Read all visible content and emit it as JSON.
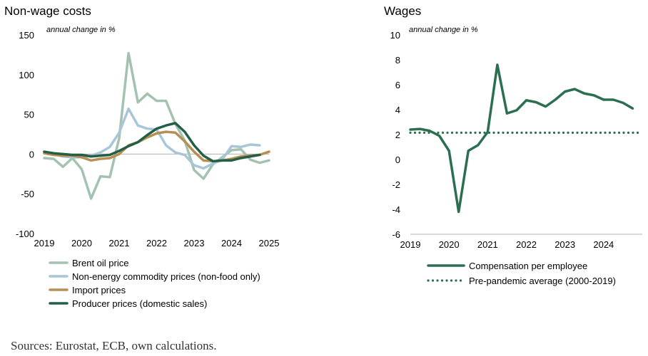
{
  "source": "Sources: Eurostat, ECB, own calculations.",
  "chart_data": [
    {
      "type": "line",
      "title": "Non-wage costs",
      "unit_label": "annual change in %",
      "ylim": [
        -100,
        150
      ],
      "yticks": [
        -100,
        -50,
        0,
        50,
        100,
        150
      ],
      "xlim": [
        2019,
        2025
      ],
      "xticks": [
        2019,
        2020,
        2021,
        2022,
        2023,
        2024,
        2025
      ],
      "grid": false,
      "legend_position": "bottom",
      "x": [
        2019.0,
        2019.25,
        2019.5,
        2019.75,
        2020.0,
        2020.25,
        2020.5,
        2020.75,
        2021.0,
        2021.25,
        2021.5,
        2021.75,
        2022.0,
        2022.25,
        2022.5,
        2022.75,
        2023.0,
        2023.25,
        2023.5,
        2023.75,
        2024.0,
        2024.25,
        2024.5,
        2024.75,
        2025.0
      ],
      "series": [
        {
          "name": "Brent oil price",
          "color": "#a3c2b0",
          "values": [
            -5,
            -6,
            -16,
            -5,
            -19,
            -56,
            -28,
            -29,
            20,
            127,
            65,
            76,
            67,
            67,
            38,
            17,
            -20,
            -31,
            -13,
            -4,
            5,
            6,
            -7,
            -11,
            -8
          ]
        },
        {
          "name": "Non-energy commodity prices (non-food only)",
          "color": "#a9c6d9",
          "values": [
            2,
            0,
            -3,
            -4,
            -4,
            -2,
            2,
            9,
            27,
            57,
            36,
            32,
            31,
            11,
            2,
            -1,
            -14,
            -18,
            -12,
            -7,
            10,
            9,
            12,
            11,
            null
          ]
        },
        {
          "name": "Import prices",
          "color": "#b58f53",
          "values": [
            1,
            -1,
            -2,
            -2,
            -4,
            -8,
            -6,
            -5,
            0,
            11,
            15,
            21,
            26,
            28,
            27,
            16,
            3,
            -8,
            -9,
            -8,
            -6,
            -3,
            -2,
            -1,
            3
          ]
        },
        {
          "name": "Producer prices (domestic sales)",
          "color": "#235e45",
          "values": [
            3,
            1,
            0,
            -1,
            -1,
            -3,
            -2,
            -1,
            4,
            10,
            15,
            24,
            32,
            36,
            39,
            28,
            11,
            -2,
            -9,
            -8,
            -8,
            -5,
            -3,
            -1,
            null
          ]
        }
      ]
    },
    {
      "type": "line",
      "title": "Wages",
      "unit_label": "annual change in %",
      "ylim": [
        -6,
        10
      ],
      "yticks": [
        -6,
        -4,
        -2,
        0,
        2,
        4,
        6,
        8,
        10
      ],
      "xlim": [
        2019,
        2025
      ],
      "xticks": [
        2019,
        2020,
        2021,
        2022,
        2023,
        2024
      ],
      "grid": false,
      "legend_position": "bottom",
      "x": [
        2019.0,
        2019.25,
        2019.5,
        2019.75,
        2020.0,
        2020.25,
        2020.5,
        2020.75,
        2021.0,
        2021.25,
        2021.5,
        2021.75,
        2022.0,
        2022.25,
        2022.5,
        2022.75,
        2023.0,
        2023.25,
        2023.5,
        2023.75,
        2024.0,
        2024.25,
        2024.5,
        2024.75
      ],
      "series": [
        {
          "name": "Compensation per employee",
          "color": "#2b6e50",
          "style": "solid",
          "values": [
            2.4,
            2.45,
            2.3,
            1.9,
            0.7,
            -4.2,
            0.7,
            1.15,
            2.2,
            7.6,
            3.7,
            3.95,
            4.75,
            4.6,
            4.25,
            4.8,
            5.45,
            5.65,
            5.3,
            5.15,
            4.8,
            4.8,
            4.55,
            4.1
          ]
        },
        {
          "name": "Pre-pandemic average (2000-2019)",
          "color": "#2b6e50",
          "style": "dotted",
          "constant": 2.15
        }
      ]
    }
  ]
}
